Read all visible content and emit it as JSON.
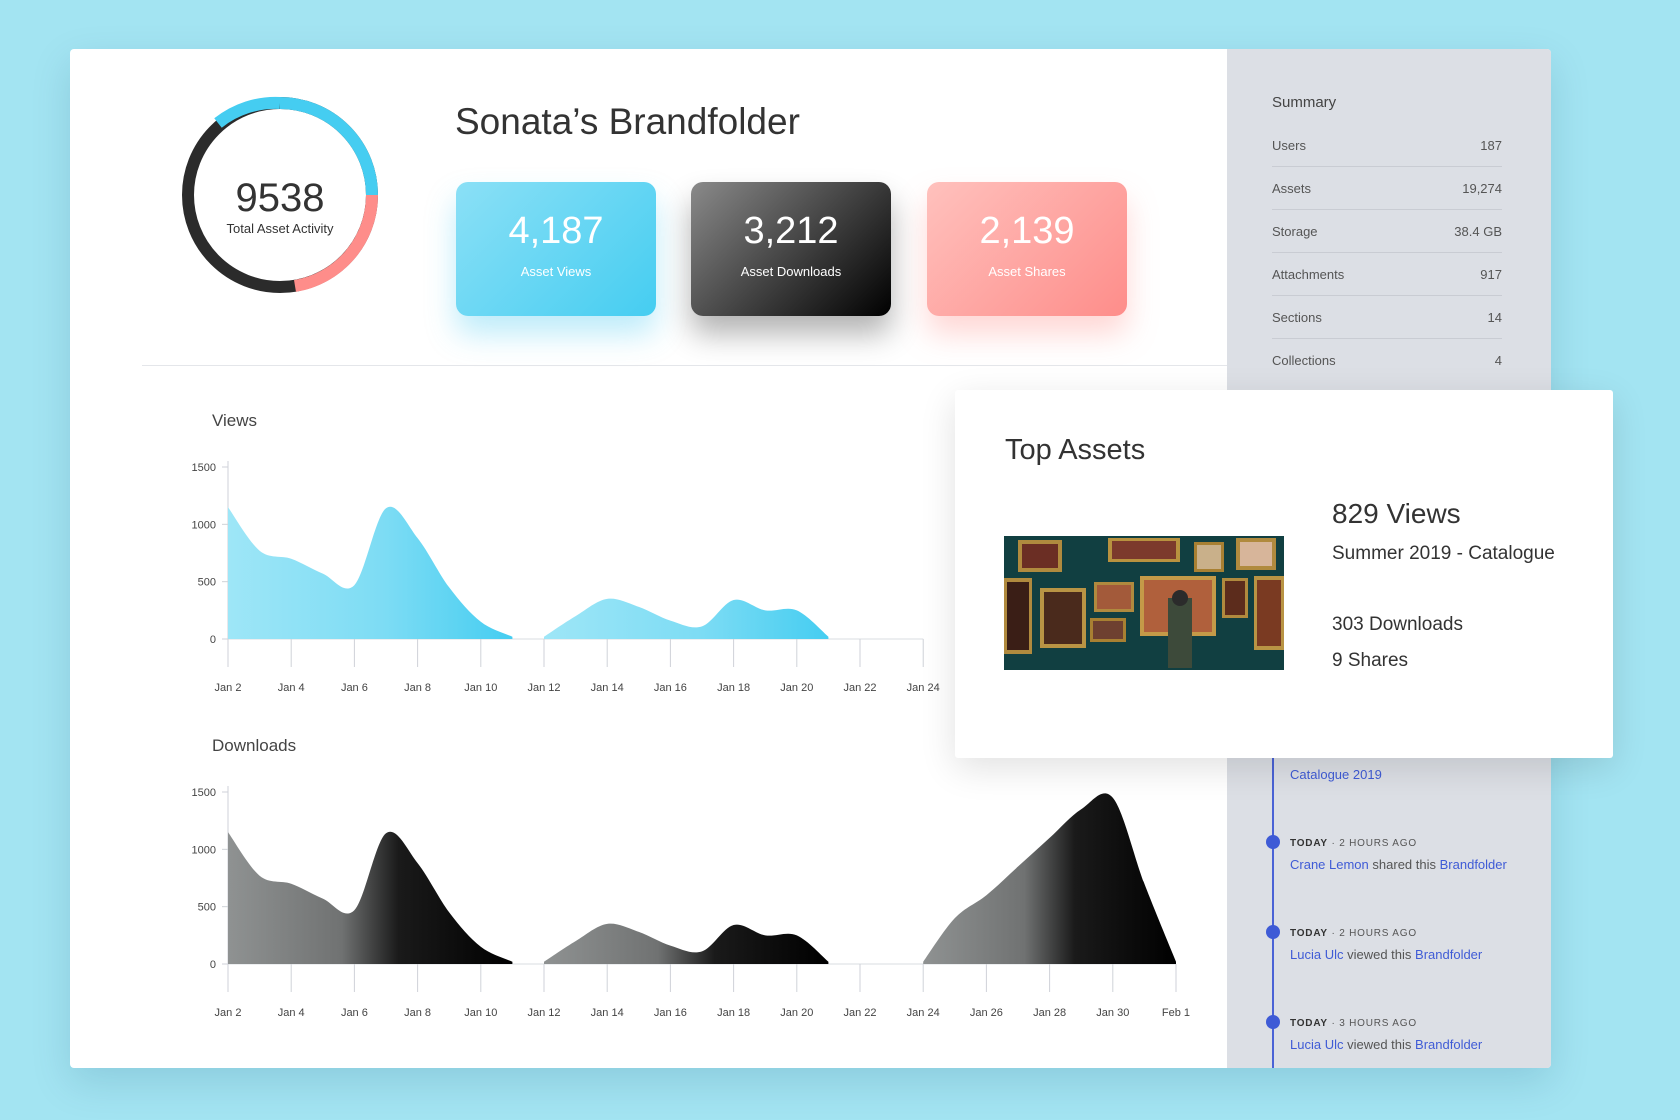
{
  "gauge": {
    "total": "9538",
    "label": "Total Asset Activity"
  },
  "brandfolder": {
    "title": "Sonata’s Brandfolder"
  },
  "stats": [
    {
      "value": "4,187",
      "label": "Asset Views"
    },
    {
      "value": "3,212",
      "label": "Asset Downloads"
    },
    {
      "value": "2,139",
      "label": "Asset Shares"
    }
  ],
  "summary": {
    "title": "Summary",
    "rows": [
      {
        "label": "Users",
        "value": "187"
      },
      {
        "label": "Assets",
        "value": "19,274"
      },
      {
        "label": "Storage",
        "value": "38.4 GB"
      },
      {
        "label": "Attachments",
        "value": "917"
      },
      {
        "label": "Sections",
        "value": "14"
      },
      {
        "label": "Collections",
        "value": "4"
      }
    ]
  },
  "activity": {
    "partial_link": "Catalogue 2019",
    "items": [
      {
        "when": "TODAY",
        "ago": "· 2 HOURS AGO",
        "user": "Crane Lemon",
        "action": "shared this",
        "target": "Brandfolder"
      },
      {
        "when": "TODAY",
        "ago": "· 2 HOURS AGO",
        "user": "Lucia Ulc",
        "action": "viewed this",
        "target": "Brandfolder"
      },
      {
        "when": "TODAY",
        "ago": "· 3 HOURS AGO",
        "user": "Lucia Ulc",
        "action": "viewed this",
        "target": "Brandfolder"
      }
    ]
  },
  "top_assets": {
    "title": "Top Assets",
    "views": "829 Views",
    "name": "Summer 2019 - Catalogue",
    "downloads": "303 Downloads",
    "shares": "9 Shares"
  },
  "colors": {
    "views": "#45cdf1",
    "downloads": "#000000",
    "shares": "#fe8d8a",
    "accent": "#3f5bd6"
  },
  "chart_data": [
    {
      "type": "area",
      "title": "Views",
      "yticks": [
        "1500",
        "1000",
        "500",
        "0"
      ],
      "ylim": [
        0,
        1500
      ],
      "xticks": [
        "Jan 2",
        "Jan 4",
        "Jan 6",
        "Jan 8",
        "Jan 10",
        "Jan 12",
        "Jan 14",
        "Jan 16",
        "Jan 18",
        "Jan 20",
        "Jan 22",
        "Jan 24"
      ],
      "segments": [
        {
          "x": [
            2,
            3,
            4,
            5,
            6,
            7,
            8,
            9,
            10,
            11
          ],
          "y": [
            1150,
            770,
            700,
            570,
            470,
            1140,
            880,
            450,
            150,
            20
          ]
        },
        {
          "x": [
            12,
            13,
            14,
            15,
            16,
            17,
            18,
            19,
            20,
            21
          ],
          "y": [
            20,
            200,
            350,
            280,
            160,
            110,
            340,
            250,
            250,
            20
          ]
        }
      ]
    },
    {
      "type": "area",
      "title": "Downloads",
      "yticks": [
        "1500",
        "1000",
        "500",
        "0"
      ],
      "ylim": [
        0,
        1500
      ],
      "xticks": [
        "Jan 2",
        "Jan 4",
        "Jan 6",
        "Jan 8",
        "Jan 10",
        "Jan 12",
        "Jan 14",
        "Jan 16",
        "Jan 18",
        "Jan 20",
        "Jan 22",
        "Jan 24",
        "Jan 26",
        "Jan 28",
        "Jan 30",
        "Feb 1"
      ],
      "segments": [
        {
          "x": [
            2,
            3,
            4,
            5,
            6,
            7,
            8,
            9,
            10,
            11
          ],
          "y": [
            1150,
            770,
            700,
            570,
            470,
            1140,
            880,
            450,
            150,
            20
          ]
        },
        {
          "x": [
            12,
            13,
            14,
            15,
            16,
            17,
            18,
            19,
            20,
            21
          ],
          "y": [
            20,
            200,
            350,
            280,
            160,
            110,
            340,
            250,
            250,
            20
          ]
        },
        {
          "x": [
            24,
            25,
            26,
            27,
            28,
            29,
            30,
            31,
            32
          ],
          "y": [
            20,
            400,
            600,
            850,
            1100,
            1350,
            1450,
            700,
            20
          ]
        }
      ]
    }
  ]
}
